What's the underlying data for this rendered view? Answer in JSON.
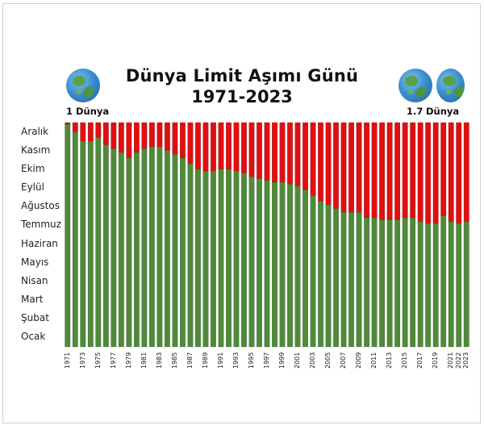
{
  "title": "Dünya Limit Aşımı Günü",
  "subtitle": "1971-2023",
  "left_globe_label": "1 Dünya",
  "right_globe_value": "1.7",
  "right_globe_unit": "Dünya",
  "icons": {
    "left": "earth-globe-icon",
    "right": "earth-globe-icon"
  },
  "colors": {
    "within_budget": "#4f8a3a",
    "overshoot": "#e10f10"
  },
  "chart_data": {
    "type": "bar",
    "stacked": true,
    "x_tick_labels": [
      "1971",
      "1973",
      "1975",
      "1977",
      "1979",
      "1981",
      "1983",
      "1985",
      "1987",
      "1989",
      "1991",
      "1993",
      "1995",
      "1997",
      "1999",
      "2001",
      "2003",
      "2005",
      "2007",
      "2009",
      "2011",
      "2013",
      "2015",
      "2017",
      "2019",
      "2021",
      "2022",
      "2023"
    ],
    "y_tick_labels": [
      "Ocak",
      "Şubat",
      "Mart",
      "Nisan",
      "Mayıs",
      "Haziran",
      "Temmuz",
      "Ağustos",
      "Eylül",
      "Ekim",
      "Kasım",
      "Aralık"
    ],
    "ylim_months": [
      0,
      12
    ],
    "years": [
      1971,
      1972,
      1973,
      1974,
      1975,
      1976,
      1977,
      1978,
      1979,
      1980,
      1981,
      1982,
      1983,
      1984,
      1985,
      1986,
      1987,
      1988,
      1989,
      1990,
      1991,
      1992,
      1993,
      1994,
      1995,
      1996,
      1997,
      1998,
      1999,
      2000,
      2001,
      2002,
      2003,
      2004,
      2005,
      2006,
      2007,
      2008,
      2009,
      2010,
      2011,
      2012,
      2013,
      2014,
      2015,
      2016,
      2017,
      2018,
      2019,
      2020,
      2021,
      2022,
      2023
    ],
    "overshoot_month": [
      11.9,
      11.5,
      11.0,
      11.0,
      11.2,
      10.8,
      10.6,
      10.4,
      10.1,
      10.4,
      10.6,
      10.7,
      10.7,
      10.5,
      10.3,
      10.1,
      9.8,
      9.5,
      9.4,
      9.4,
      9.5,
      9.5,
      9.4,
      9.3,
      9.1,
      9.0,
      8.9,
      8.8,
      8.8,
      8.7,
      8.6,
      8.4,
      8.1,
      7.8,
      7.6,
      7.4,
      7.2,
      7.2,
      7.2,
      6.9,
      6.9,
      6.8,
      6.8,
      6.8,
      6.9,
      6.9,
      6.7,
      6.6,
      6.6,
      7.0,
      6.7,
      6.6,
      6.7
    ],
    "grid": false,
    "legend": "none"
  }
}
